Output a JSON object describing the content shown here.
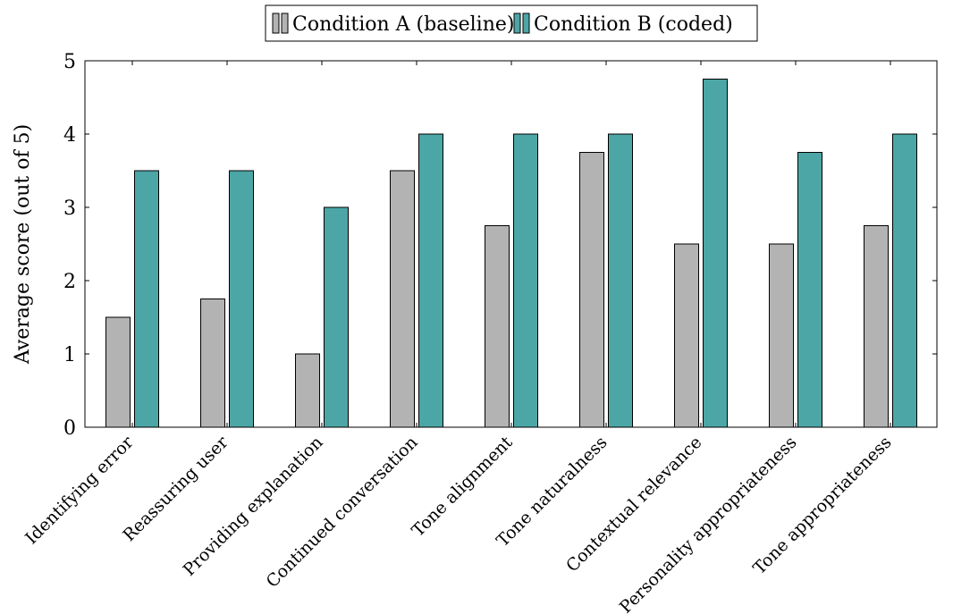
{
  "chart_data": {
    "type": "bar",
    "title": "",
    "xlabel": "",
    "ylabel": "Average score (out of 5)",
    "ylim": [
      0,
      5
    ],
    "yticks": [
      0,
      1,
      2,
      3,
      4,
      5
    ],
    "categories": [
      "Identifying error",
      "Reassuring user",
      "Providing explanation",
      "Continued conversation",
      "Tone alignment",
      "Tone naturalness",
      "Contextual relevance",
      "Personality appropriateness",
      "Tone appropriateness"
    ],
    "series": [
      {
        "name": "Condition A (baseline)",
        "color": "#b3b3b3",
        "values": [
          1.5,
          1.75,
          1.0,
          3.5,
          2.75,
          3.75,
          2.5,
          2.5,
          2.75
        ]
      },
      {
        "name": "Condition B (coded)",
        "color": "#4ca6a6",
        "values": [
          3.5,
          3.5,
          3.0,
          4.0,
          4.0,
          4.0,
          4.75,
          3.75,
          4.0
        ]
      }
    ],
    "legend": "top-center",
    "grid": false
  }
}
